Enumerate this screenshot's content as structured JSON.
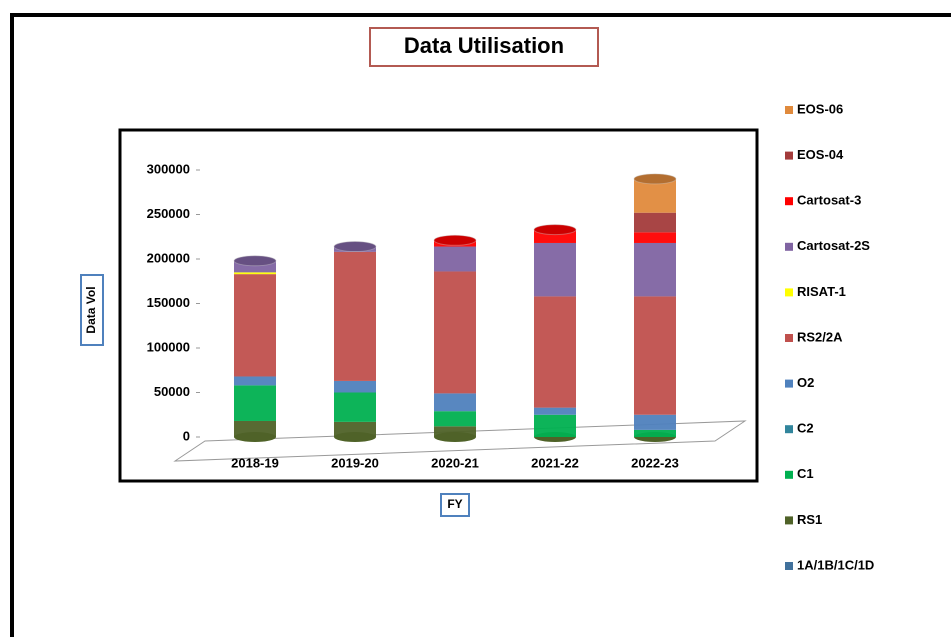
{
  "chart_data": {
    "type": "bar",
    "stacked": true,
    "title": "Data Utilisation",
    "x_label": "FY",
    "y_label": "Data Vol",
    "categories": [
      "2018-19",
      "2019-20",
      "2020-21",
      "2021-22",
      "2022-23"
    ],
    "ylim": [
      0,
      300000
    ],
    "yticks": [
      0,
      50000,
      100000,
      150000,
      200000,
      250000,
      300000
    ],
    "series": [
      {
        "name": "1A/1B/1C/1D",
        "color": "#41719c",
        "values": [
          0,
          0,
          0,
          0,
          0
        ]
      },
      {
        "name": "RS1",
        "color": "#4f6228",
        "values": [
          18000,
          17000,
          12000,
          0,
          0
        ]
      },
      {
        "name": "C1",
        "color": "#00b050",
        "values": [
          40000,
          33000,
          17000,
          25000,
          8000
        ]
      },
      {
        "name": "C2",
        "color": "#31859c",
        "values": [
          0,
          0,
          0,
          0,
          0
        ]
      },
      {
        "name": "O2",
        "color": "#4f81bd",
        "values": [
          10000,
          13000,
          20000,
          8000,
          17000
        ]
      },
      {
        "name": "RS2/2A",
        "color": "#c0504d",
        "values": [
          115000,
          145000,
          137000,
          125000,
          133000
        ]
      },
      {
        "name": "RISAT-1",
        "color": "#ffff00",
        "values": [
          2000,
          0,
          0,
          0,
          0
        ]
      },
      {
        "name": "Cartosat-2S",
        "color": "#8064a2",
        "values": [
          13000,
          6000,
          28000,
          60000,
          60000
        ]
      },
      {
        "name": "Cartosat-3",
        "color": "#ff0000",
        "values": [
          0,
          0,
          7000,
          15000,
          12000
        ]
      },
      {
        "name": "EOS-04",
        "color": "#a33b3b",
        "values": [
          0,
          0,
          0,
          0,
          22000
        ]
      },
      {
        "name": "EOS-06",
        "color": "#e08a3c",
        "values": [
          0,
          0,
          0,
          0,
          38000
        ]
      }
    ]
  }
}
